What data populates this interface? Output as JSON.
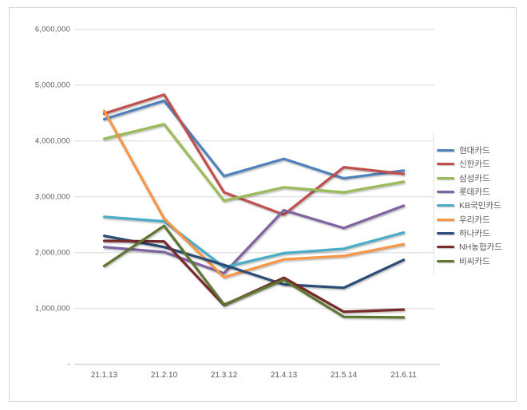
{
  "window": {
    "background_color": "#ffffff",
    "frame_border_color": "#d6d6d6"
  },
  "chart_data": {
    "type": "line",
    "title": "",
    "xlabel": "",
    "ylabel": "",
    "categories": [
      "21.1.13",
      "21.2.10",
      "21.3.12",
      "21.4.13",
      "21.5.14",
      "21.6.11"
    ],
    "series": [
      {
        "name": "현대카드",
        "color": "#4F81BD",
        "values": [
          4390000,
          4720000,
          3370000,
          3680000,
          3330000,
          3470000
        ]
      },
      {
        "name": "신한카드",
        "color": "#C0504D",
        "values": [
          4490000,
          4830000,
          3080000,
          2680000,
          3530000,
          3410000
        ]
      },
      {
        "name": "삼성카드",
        "color": "#9BBB59",
        "values": [
          4040000,
          4300000,
          2930000,
          3170000,
          3080000,
          3270000
        ]
      },
      {
        "name": "롯데카드",
        "color": "#8064A2",
        "values": [
          2100000,
          2010000,
          1630000,
          2760000,
          2440000,
          2840000
        ]
      },
      {
        "name": "KB국민카드",
        "color": "#4BACC6",
        "values": [
          2640000,
          2560000,
          1740000,
          1990000,
          2070000,
          2360000
        ]
      },
      {
        "name": "우리카드",
        "color": "#F79646",
        "values": [
          4540000,
          2610000,
          1560000,
          1880000,
          1940000,
          2150000
        ]
      },
      {
        "name": "하나카드",
        "color": "#2C4D75",
        "values": [
          2300000,
          2100000,
          1780000,
          1430000,
          1370000,
          1870000
        ]
      },
      {
        "name": "NH농협카드",
        "color": "#772C2A",
        "values": [
          2210000,
          2200000,
          1060000,
          1550000,
          940000,
          980000
        ]
      },
      {
        "name": "비씨카드",
        "color": "#5F7530",
        "values": [
          1760000,
          2480000,
          1070000,
          1510000,
          850000,
          840000
        ]
      }
    ],
    "ylim": [
      0,
      6000000
    ],
    "y_tick_interval": 1000000,
    "y_ticks": [
      {
        "value": 0,
        "label": "-"
      },
      {
        "value": 1000000,
        "label": "1,000,000"
      },
      {
        "value": 2000000,
        "label": "2,000,000"
      },
      {
        "value": 3000000,
        "label": "3,000,000"
      },
      {
        "value": 4000000,
        "label": "4,000,000"
      },
      {
        "value": 5000000,
        "label": "5,000,000"
      },
      {
        "value": 6000000,
        "label": "6,000,000"
      }
    ],
    "grid": true,
    "legend_position": "right",
    "colors": {
      "gridline": "#D9D9D9",
      "axis_line": "#BFBFBF",
      "plot_right_border": "#E2E2E2",
      "tick_label": "#595959",
      "legend_text": "#595959"
    }
  }
}
